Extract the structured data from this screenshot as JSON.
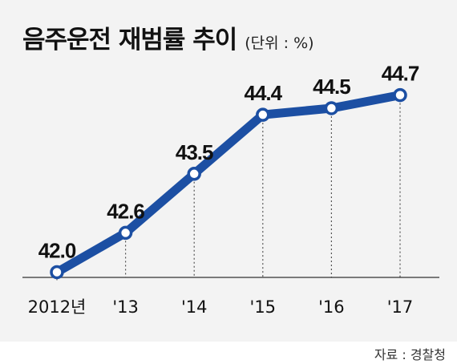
{
  "header": {
    "title": "음주운전 재범률 추이",
    "unit": "(단위 : %)"
  },
  "source": "자료 : 경찰청",
  "colors": {
    "line": "#1c4fa3",
    "marker_fill": "#ffffff",
    "guide": "#555555",
    "panel": "#f3f3f3"
  },
  "chart_data": {
    "type": "line",
    "title": "음주운전 재범률 추이",
    "unit_label": "(단위 : %)",
    "categories": [
      "2012년",
      "'13",
      "'14",
      "'15",
      "'16",
      "'17"
    ],
    "series": [
      {
        "values": [
          42.0,
          42.6,
          43.5,
          44.4,
          44.5,
          44.7
        ]
      }
    ],
    "data_labels": [
      "42.0",
      "42.6",
      "43.5",
      "44.4",
      "44.5",
      "44.7"
    ],
    "ylim": [
      40.6,
      45.6
    ],
    "grid": false,
    "legend": "none",
    "marker": "circle"
  }
}
